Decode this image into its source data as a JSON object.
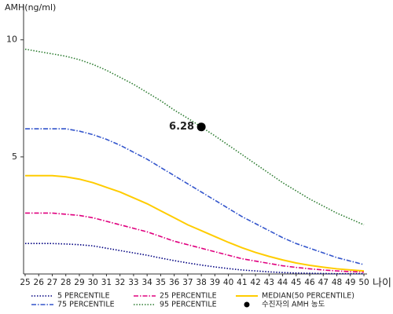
{
  "chart_data": {
    "type": "line",
    "y_label": "AMH(ng/ml)",
    "x_label": "나이",
    "x": [
      25,
      26,
      27,
      28,
      29,
      30,
      31,
      32,
      33,
      34,
      35,
      36,
      37,
      38,
      39,
      40,
      41,
      42,
      43,
      44,
      45,
      46,
      47,
      48,
      49,
      50
    ],
    "xlim": [
      25,
      50
    ],
    "xticks": [
      25,
      26,
      27,
      28,
      29,
      30,
      31,
      32,
      33,
      34,
      35,
      36,
      37,
      38,
      39,
      40,
      41,
      42,
      43,
      44,
      45,
      46,
      47,
      48,
      49,
      50
    ],
    "ylim": [
      0,
      11.5
    ],
    "yticks": [
      5,
      10
    ],
    "series": [
      {
        "name": "5 PERCENTILE",
        "color": "#000080",
        "style": "dotted",
        "values": [
          1.3,
          1.3,
          1.3,
          1.28,
          1.25,
          1.2,
          1.1,
          1.0,
          0.9,
          0.8,
          0.68,
          0.57,
          0.47,
          0.38,
          0.3,
          0.23,
          0.17,
          0.13,
          0.09,
          0.06,
          0.04,
          0.03,
          0.02,
          0.01,
          0.01,
          0.01
        ]
      },
      {
        "name": "75 PERCENTILE",
        "color": "#3355cc",
        "style": "dashdot",
        "values": [
          6.2,
          6.2,
          6.2,
          6.2,
          6.1,
          5.95,
          5.75,
          5.5,
          5.2,
          4.9,
          4.55,
          4.2,
          3.85,
          3.5,
          3.15,
          2.8,
          2.45,
          2.15,
          1.85,
          1.55,
          1.3,
          1.1,
          0.9,
          0.7,
          0.55,
          0.4
        ]
      },
      {
        "name": "25 PERCENTILE",
        "color": "#e0007f",
        "style": "dashdot",
        "values": [
          2.6,
          2.6,
          2.6,
          2.55,
          2.5,
          2.4,
          2.25,
          2.1,
          1.95,
          1.8,
          1.6,
          1.4,
          1.25,
          1.1,
          0.95,
          0.8,
          0.65,
          0.55,
          0.45,
          0.35,
          0.28,
          0.22,
          0.17,
          0.13,
          0.1,
          0.08
        ]
      },
      {
        "name": "95 PERCENTILE",
        "color": "#2e7d32",
        "style": "dotted",
        "values": [
          9.6,
          9.5,
          9.4,
          9.3,
          9.15,
          8.95,
          8.7,
          8.4,
          8.1,
          7.75,
          7.4,
          7.0,
          6.65,
          6.28,
          5.9,
          5.5,
          5.1,
          4.7,
          4.3,
          3.9,
          3.55,
          3.2,
          2.9,
          2.6,
          2.35,
          2.1
        ]
      },
      {
        "name": "MEDIAN(50 PERCENTILE)",
        "color": "#ffcc00",
        "style": "solid",
        "values": [
          4.2,
          4.2,
          4.2,
          4.15,
          4.05,
          3.9,
          3.7,
          3.5,
          3.25,
          3.0,
          2.7,
          2.4,
          2.1,
          1.85,
          1.6,
          1.35,
          1.12,
          0.92,
          0.75,
          0.6,
          0.47,
          0.37,
          0.29,
          0.22,
          0.17,
          0.13
        ]
      }
    ],
    "points": [
      {
        "name": "수진자의 AMH 농도",
        "x": 38,
        "y": 6.28,
        "color": "#000000"
      }
    ]
  }
}
